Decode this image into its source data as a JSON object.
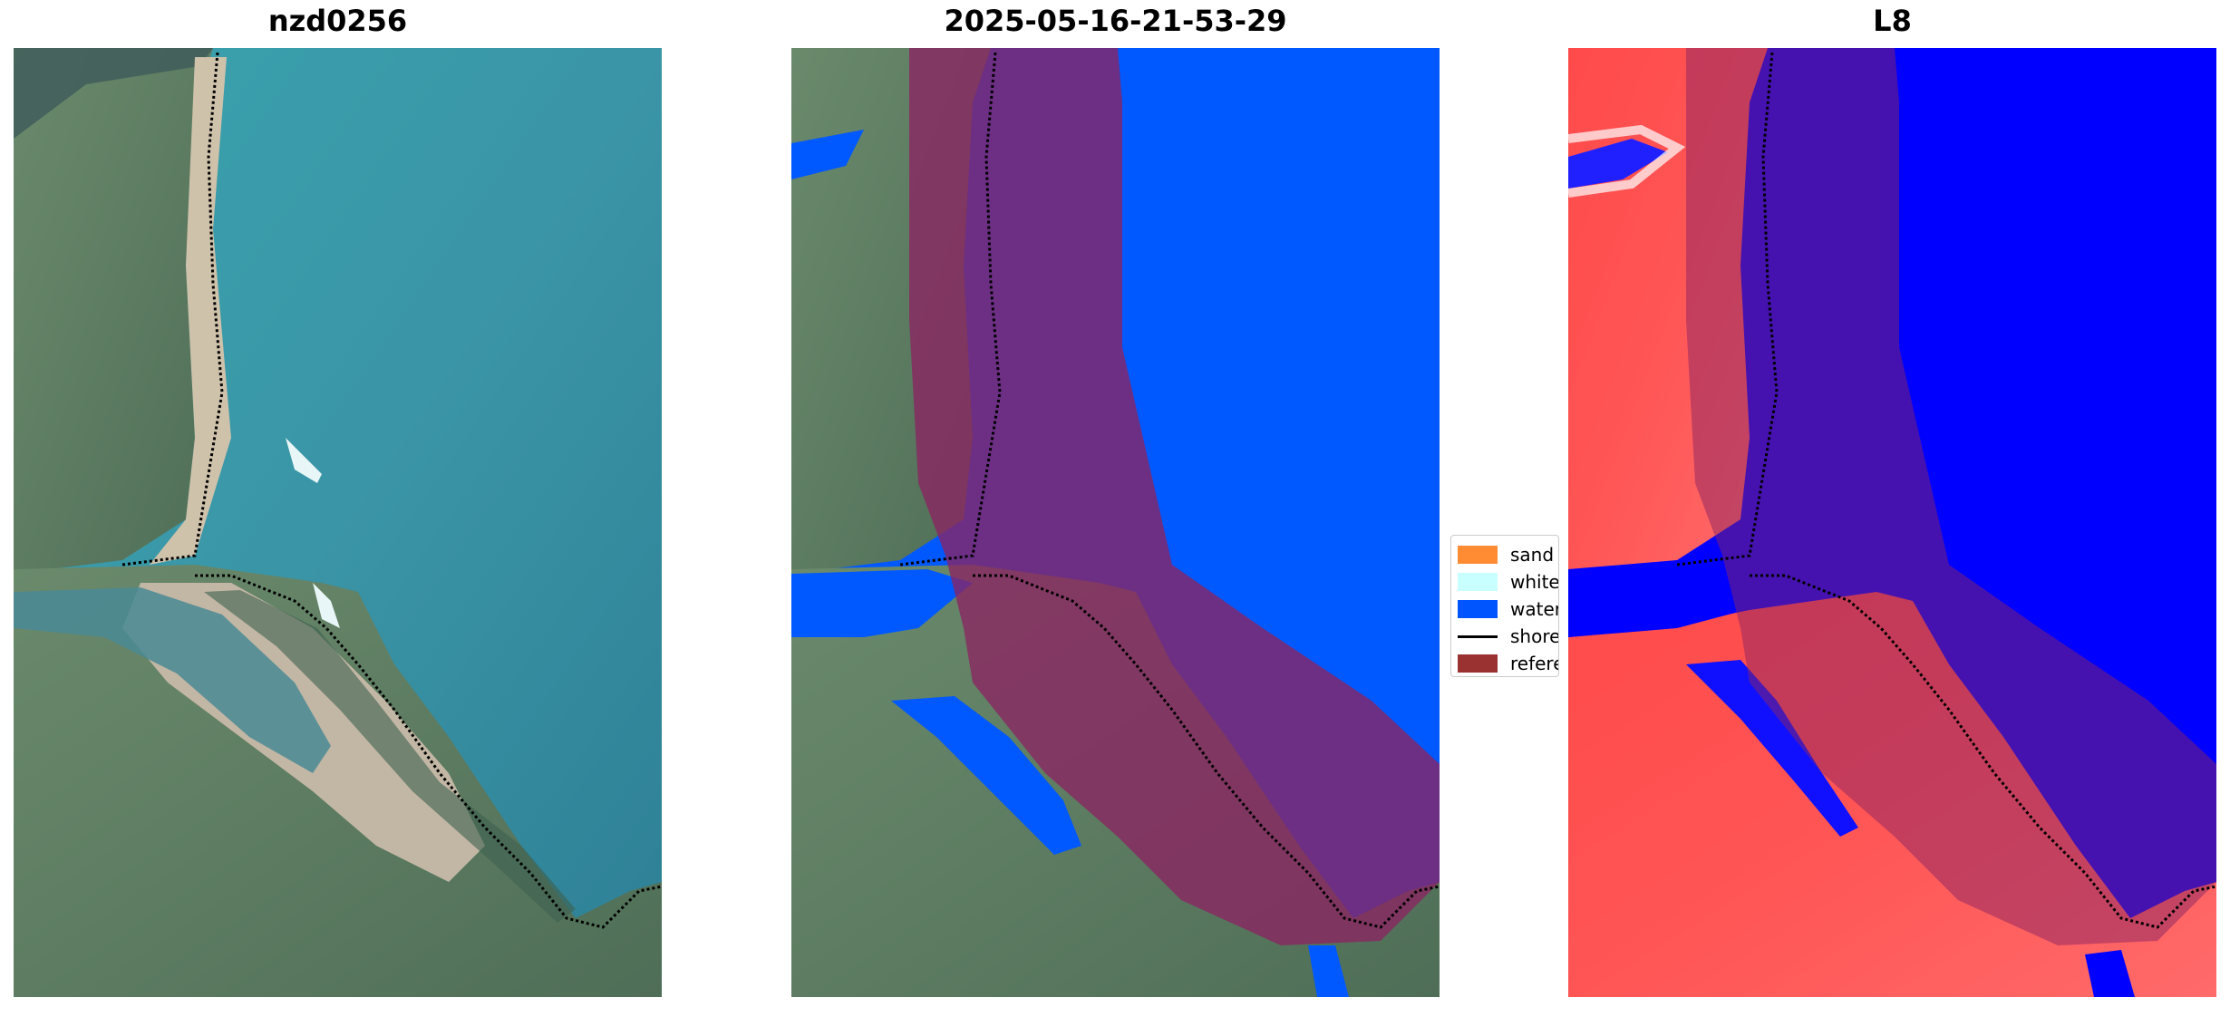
{
  "panels": [
    {
      "title": "nzd0256"
    },
    {
      "title": "2025-05-16-21-53-29"
    },
    {
      "title": "L8"
    }
  ],
  "legend": {
    "items": [
      {
        "label": "sand",
        "color": "#ff8c33"
      },
      {
        "label": "whitew",
        "color": "#c8ffff"
      },
      {
        "label": "water",
        "color": "#0055ff"
      },
      {
        "label": "shorel",
        "color": "#000000"
      },
      {
        "label": "referen",
        "color": "#9b3232"
      }
    ]
  },
  "colors": {
    "ocean": "#3f9aa8",
    "land": "#5f7e64",
    "sand_beach": "#c9bba4",
    "water_class": "#0059ff",
    "reference_zone": "#8a2461",
    "index_land": "#ff3b3b",
    "index_water": "#0000ff"
  }
}
